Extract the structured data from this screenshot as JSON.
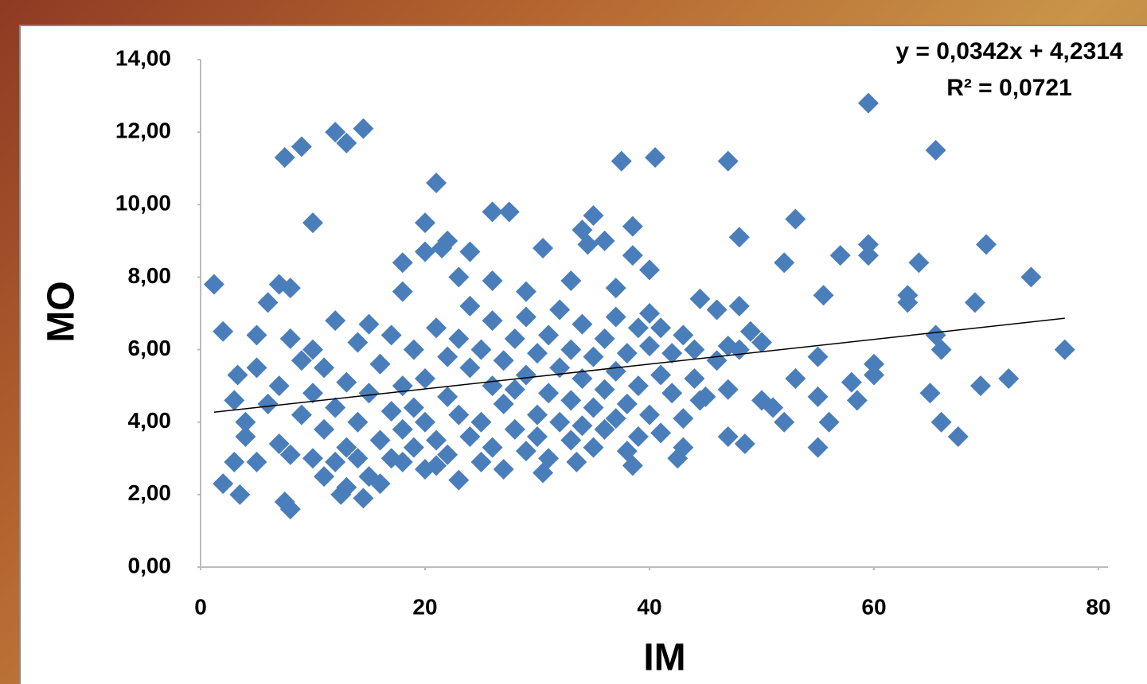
{
  "chart_data": {
    "type": "scatter",
    "xlabel": "IM",
    "ylabel": "MO",
    "color": "#4a7ebb",
    "xlim": [
      0,
      80
    ],
    "ylim": [
      0,
      14
    ],
    "xticks": [
      0,
      20,
      40,
      60,
      80
    ],
    "yticks": [
      {
        "value": 0,
        "label": "0,00"
      },
      {
        "value": 2,
        "label": "2,00"
      },
      {
        "value": 4,
        "label": "4,00"
      },
      {
        "value": 6,
        "label": "6,00"
      },
      {
        "value": 8,
        "label": "8,00"
      },
      {
        "value": 10,
        "label": "10,00"
      },
      {
        "value": 12,
        "label": "12,00"
      },
      {
        "value": 14,
        "label": "14,00"
      }
    ],
    "trendline": {
      "slope": 0.0342,
      "intercept": 4.2314,
      "equation": "y = 0,0342x + 4,2314",
      "r_squared": "R² = 0,0721"
    },
    "x": [
      1.2,
      2,
      2,
      3.5,
      3.3,
      3,
      3,
      5,
      5,
      6,
      7,
      7.5,
      9,
      8,
      8,
      7.5,
      10,
      12,
      13,
      14.5,
      12.5,
      14.5,
      18,
      18,
      20,
      20,
      21,
      22,
      21.5,
      24,
      23,
      26,
      27.5,
      26,
      29,
      30.5,
      30.5,
      33.5,
      33,
      34,
      35,
      34.5,
      36,
      37,
      37.5,
      38.5,
      38.5,
      40,
      40.5,
      38.5,
      42.5,
      43,
      44,
      44.5,
      44.5,
      47,
      46,
      47,
      48,
      48,
      48.5,
      47,
      48,
      49,
      50,
      50,
      51,
      52,
      52,
      53,
      53,
      55,
      55,
      55,
      55.5,
      56,
      57,
      58,
      58.5,
      59.5,
      59.5,
      59.5,
      60,
      60,
      63,
      63,
      64,
      65,
      65.5,
      65.5,
      66,
      66,
      67.5,
      69,
      69.5,
      70,
      72,
      74,
      77,
      4,
      4,
      5,
      6,
      7,
      7,
      8,
      8,
      9,
      9,
      10,
      10,
      10,
      11,
      11,
      11,
      12,
      12,
      12,
      13,
      13,
      13,
      14,
      14,
      14,
      15,
      15,
      15,
      16,
      16,
      16,
      17,
      17,
      17,
      18,
      18,
      18,
      19,
      19,
      19,
      20,
      20,
      20,
      21,
      21,
      21,
      22,
      22,
      22,
      23,
      23,
      23,
      24,
      24,
      24,
      25,
      25,
      25,
      26,
      26,
      26,
      27,
      27,
      27,
      28,
      28,
      28,
      29,
      29,
      29,
      30,
      30,
      30,
      31,
      31,
      31,
      32,
      32,
      32,
      33,
      33,
      33,
      34,
      34,
      34,
      35,
      35,
      35,
      36,
      36,
      36,
      37,
      37,
      37,
      38,
      38,
      38,
      39,
      39,
      39,
      40,
      40,
      40,
      41,
      41,
      41,
      42,
      42,
      43,
      43,
      44,
      45,
      46,
      47
    ],
    "values": [
      7.8,
      6.5,
      2.3,
      2.0,
      5.3,
      4.6,
      2.9,
      6.4,
      5.5,
      7.3,
      7.8,
      11.3,
      11.6,
      7.7,
      1.6,
      1.8,
      9.5,
      12.0,
      11.7,
      12.1,
      2.0,
      1.9,
      8.4,
      7.6,
      9.5,
      8.7,
      10.6,
      9.0,
      8.8,
      8.7,
      8.0,
      9.8,
      9.8,
      7.9,
      7.6,
      8.8,
      2.6,
      2.9,
      7.9,
      9.3,
      9.7,
      8.9,
      9.0,
      7.7,
      11.2,
      9.4,
      8.6,
      8.2,
      11.3,
      2.8,
      3.0,
      3.3,
      6.0,
      7.4,
      4.6,
      11.2,
      7.1,
      3.6,
      9.1,
      7.2,
      3.4,
      4.9,
      6.0,
      6.5,
      6.2,
      4.6,
      4.4,
      4.0,
      8.4,
      9.6,
      5.2,
      5.8,
      4.7,
      3.3,
      7.5,
      4.0,
      8.6,
      5.1,
      4.6,
      12.8,
      8.9,
      8.6,
      5.3,
      5.6,
      7.5,
      7.3,
      8.4,
      4.8,
      11.5,
      6.4,
      6.0,
      4.0,
      3.6,
      7.3,
      5.0,
      8.9,
      5.2,
      8.0,
      6.0,
      4.0,
      3.6,
      2.9,
      4.5,
      3.4,
      5.0,
      3.1,
      6.3,
      4.2,
      5.7,
      3.0,
      6.0,
      4.8,
      2.5,
      3.8,
      5.5,
      2.9,
      4.4,
      6.8,
      3.3,
      5.1,
      2.2,
      4.0,
      6.2,
      3.0,
      2.5,
      4.8,
      6.7,
      3.5,
      5.6,
      2.3,
      4.3,
      6.4,
      3.0,
      5.0,
      2.9,
      3.8,
      4.4,
      6.0,
      3.3,
      2.7,
      5.2,
      4.0,
      6.6,
      3.5,
      2.8,
      4.7,
      5.8,
      3.1,
      2.4,
      6.3,
      4.2,
      3.6,
      5.5,
      7.2,
      4.0,
      2.9,
      6.0,
      5.0,
      3.3,
      6.8,
      4.5,
      2.7,
      5.7,
      3.8,
      6.3,
      4.9,
      3.2,
      5.3,
      6.9,
      4.2,
      3.6,
      5.9,
      4.8,
      6.4,
      3.0,
      5.5,
      4.0,
      7.1,
      3.5,
      6.0,
      4.6,
      5.2,
      3.9,
      6.7,
      4.4,
      5.8,
      3.3,
      6.3,
      4.9,
      3.8,
      5.4,
      4.1,
      6.9,
      3.2,
      5.9,
      4.5,
      6.6,
      3.6,
      5.0,
      4.2,
      6.1,
      7.0,
      5.3,
      3.7,
      6.6,
      4.8,
      5.9,
      4.1,
      6.4,
      5.2,
      4.7,
      5.7,
      6.1
    ]
  }
}
